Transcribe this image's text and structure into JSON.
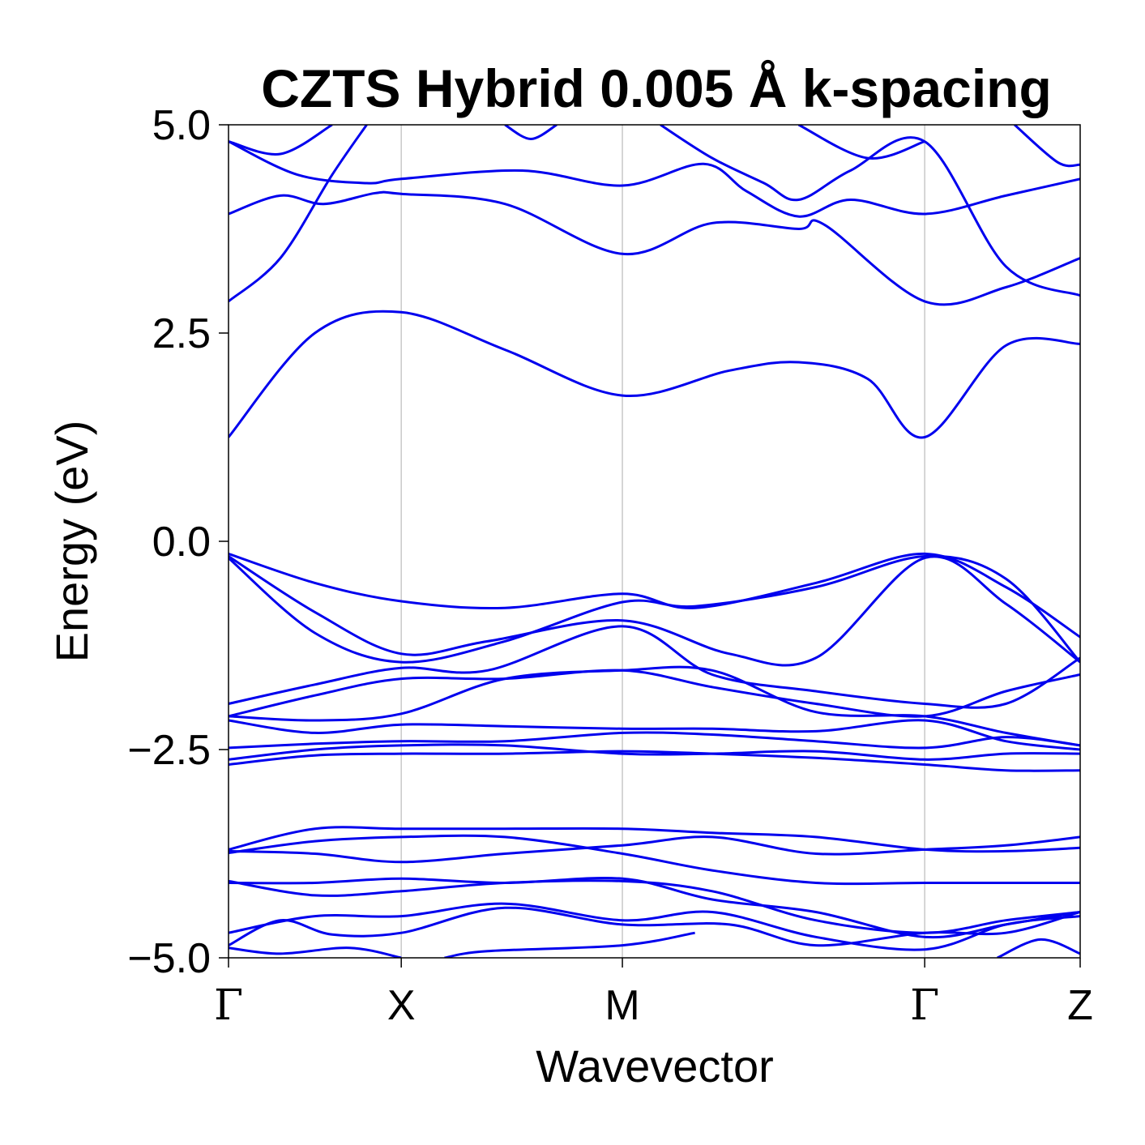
{
  "chart_data": {
    "type": "line",
    "title": "CZTS Hybrid 0.005 Å k-spacing",
    "xlabel": "Wavevector",
    "ylabel": "Energy (eV)",
    "ylim": [
      -5.0,
      5.0
    ],
    "yticks": [
      5.0,
      2.5,
      0.0,
      -2.5,
      -5.0
    ],
    "ytick_labels": [
      "5.0",
      "2.5",
      "0.0",
      "−2.5",
      "−5.0"
    ],
    "kpoint_labels": [
      "Γ",
      "X",
      "M",
      "Γ",
      "Z"
    ],
    "kpoint_positions": [
      0.0,
      1.0,
      2.28,
      4.03,
      4.93
    ],
    "xlim": [
      0.0,
      4.93
    ],
    "grid": "vertical lines at high-symmetry points",
    "line_color": "#0000ee",
    "series": [
      {
        "values": [
          [
            0,
            1.25
          ],
          [
            0.5,
            2.5
          ],
          [
            1.0,
            2.75
          ],
          [
            1.6,
            2.3
          ],
          [
            2.28,
            1.75
          ],
          [
            2.9,
            2.05
          ],
          [
            3.3,
            2.15
          ],
          [
            3.7,
            1.95
          ],
          [
            4.03,
            1.25
          ],
          [
            4.5,
            2.35
          ],
          [
            4.93,
            2.37
          ]
        ]
      },
      {
        "values": [
          [
            0,
            2.88
          ],
          [
            0.3,
            3.4
          ],
          [
            0.6,
            4.4
          ],
          [
            0.8,
            5.0
          ]
        ]
      },
      {
        "values": [
          [
            0,
            3.93
          ],
          [
            0.3,
            4.15
          ],
          [
            0.55,
            4.05
          ],
          [
            0.85,
            4.18
          ],
          [
            1.0,
            4.17
          ],
          [
            1.6,
            4.05
          ],
          [
            2.28,
            3.45
          ],
          [
            2.8,
            3.82
          ],
          [
            3.3,
            3.75
          ],
          [
            3.45,
            3.8
          ],
          [
            4.03,
            2.88
          ],
          [
            4.5,
            3.05
          ],
          [
            4.93,
            3.4
          ]
        ]
      },
      {
        "values": [
          [
            0,
            4.8
          ],
          [
            0.4,
            4.4
          ],
          [
            0.8,
            4.3
          ],
          [
            1.0,
            4.35
          ],
          [
            1.7,
            4.45
          ],
          [
            2.28,
            4.27
          ],
          [
            2.75,
            4.53
          ],
          [
            3.0,
            4.2
          ],
          [
            3.3,
            3.9
          ],
          [
            3.6,
            4.1
          ],
          [
            4.03,
            3.93
          ],
          [
            4.5,
            4.15
          ],
          [
            4.93,
            4.35
          ]
        ]
      },
      {
        "values": [
          [
            0,
            4.8
          ],
          [
            0.3,
            4.65
          ],
          [
            0.6,
            5.0
          ]
        ]
      },
      {
        "values": [
          [
            1.6,
            5.0
          ],
          [
            1.75,
            4.83
          ],
          [
            1.9,
            5.0
          ]
        ]
      },
      {
        "values": [
          [
            2.5,
            5.0
          ],
          [
            2.8,
            4.6
          ],
          [
            3.1,
            4.3
          ],
          [
            3.3,
            4.1
          ],
          [
            3.6,
            4.45
          ],
          [
            4.03,
            4.8
          ],
          [
            4.5,
            3.3
          ],
          [
            4.93,
            2.95
          ]
        ]
      },
      {
        "values": [
          [
            3.3,
            5.0
          ],
          [
            3.7,
            4.6
          ],
          [
            4.03,
            4.8
          ]
        ]
      },
      {
        "values": [
          [
            4.55,
            5.0
          ],
          [
            4.8,
            4.55
          ],
          [
            4.93,
            4.52
          ]
        ]
      },
      {
        "values": [
          [
            0,
            -0.15
          ],
          [
            0.5,
            -0.5
          ],
          [
            1.0,
            -0.72
          ],
          [
            1.6,
            -0.8
          ],
          [
            2.28,
            -0.63
          ],
          [
            2.7,
            -0.8
          ],
          [
            3.4,
            -0.5
          ],
          [
            4.03,
            -0.15
          ],
          [
            4.5,
            -0.55
          ],
          [
            4.93,
            -1.15
          ]
        ]
      },
      {
        "values": [
          [
            0,
            -0.18
          ],
          [
            0.5,
            -0.85
          ],
          [
            1.0,
            -1.35
          ],
          [
            1.5,
            -1.2
          ],
          [
            2.28,
            -0.95
          ],
          [
            2.9,
            -1.35
          ],
          [
            3.4,
            -1.4
          ],
          [
            4.03,
            -0.2
          ],
          [
            4.5,
            -0.75
          ],
          [
            4.93,
            -1.45
          ]
        ]
      },
      {
        "values": [
          [
            0,
            -0.2
          ],
          [
            0.5,
            -1.1
          ],
          [
            1.0,
            -1.45
          ],
          [
            1.6,
            -1.2
          ],
          [
            2.28,
            -0.73
          ],
          [
            2.7,
            -0.78
          ],
          [
            3.4,
            -0.55
          ],
          [
            4.03,
            -0.18
          ],
          [
            4.5,
            -0.45
          ],
          [
            4.93,
            -1.45
          ]
        ]
      },
      {
        "values": [
          [
            0,
            -1.95
          ],
          [
            0.5,
            -1.72
          ],
          [
            1.0,
            -1.52
          ],
          [
            1.5,
            -1.55
          ],
          [
            2.28,
            -1.02
          ],
          [
            2.8,
            -1.6
          ],
          [
            3.4,
            -1.8
          ],
          [
            4.03,
            -1.95
          ],
          [
            4.5,
            -1.95
          ],
          [
            4.93,
            -1.4
          ]
        ]
      },
      {
        "values": [
          [
            0,
            -2.1
          ],
          [
            0.5,
            -1.85
          ],
          [
            1.0,
            -1.65
          ],
          [
            1.6,
            -1.65
          ],
          [
            2.28,
            -1.55
          ],
          [
            2.8,
            -1.75
          ],
          [
            3.4,
            -1.95
          ],
          [
            4.03,
            -2.1
          ],
          [
            4.5,
            -1.8
          ],
          [
            4.93,
            -1.6
          ]
        ]
      },
      {
        "values": [
          [
            0,
            -2.1
          ],
          [
            0.5,
            -2.15
          ],
          [
            1.0,
            -2.07
          ],
          [
            1.6,
            -1.65
          ],
          [
            2.28,
            -1.55
          ],
          [
            2.8,
            -1.55
          ],
          [
            3.4,
            -2.05
          ],
          [
            4.03,
            -2.1
          ],
          [
            4.5,
            -2.3
          ],
          [
            4.93,
            -2.45
          ]
        ]
      },
      {
        "values": [
          [
            0,
            -2.15
          ],
          [
            0.5,
            -2.3
          ],
          [
            1.0,
            -2.2
          ],
          [
            1.6,
            -2.22
          ],
          [
            2.28,
            -2.25
          ],
          [
            2.8,
            -2.25
          ],
          [
            3.4,
            -2.28
          ],
          [
            4.03,
            -2.15
          ],
          [
            4.5,
            -2.4
          ],
          [
            4.93,
            -2.5
          ]
        ]
      },
      {
        "values": [
          [
            0,
            -2.48
          ],
          [
            0.5,
            -2.43
          ],
          [
            1.0,
            -2.4
          ],
          [
            1.6,
            -2.4
          ],
          [
            2.28,
            -2.3
          ],
          [
            2.8,
            -2.32
          ],
          [
            3.4,
            -2.4
          ],
          [
            4.03,
            -2.48
          ],
          [
            4.5,
            -2.35
          ],
          [
            4.93,
            -2.45
          ]
        ]
      },
      {
        "values": [
          [
            0,
            -2.62
          ],
          [
            0.5,
            -2.5
          ],
          [
            1.0,
            -2.45
          ],
          [
            1.6,
            -2.45
          ],
          [
            2.28,
            -2.55
          ],
          [
            2.8,
            -2.55
          ],
          [
            3.4,
            -2.52
          ],
          [
            4.03,
            -2.62
          ],
          [
            4.5,
            -2.55
          ],
          [
            4.93,
            -2.55
          ]
        ]
      },
      {
        "values": [
          [
            0,
            -2.68
          ],
          [
            0.5,
            -2.57
          ],
          [
            1.0,
            -2.55
          ],
          [
            1.6,
            -2.55
          ],
          [
            2.28,
            -2.52
          ],
          [
            2.8,
            -2.55
          ],
          [
            3.4,
            -2.6
          ],
          [
            4.03,
            -2.68
          ],
          [
            4.5,
            -2.75
          ],
          [
            4.93,
            -2.75
          ]
        ]
      },
      {
        "values": [
          [
            0,
            -3.7
          ],
          [
            0.5,
            -3.45
          ],
          [
            1.0,
            -3.45
          ],
          [
            1.6,
            -3.45
          ],
          [
            2.28,
            -3.45
          ],
          [
            2.8,
            -3.5
          ],
          [
            3.4,
            -3.55
          ],
          [
            4.03,
            -3.7
          ],
          [
            4.5,
            -3.72
          ],
          [
            4.93,
            -3.68
          ]
        ]
      },
      {
        "values": [
          [
            0,
            -3.72
          ],
          [
            0.5,
            -3.75
          ],
          [
            1.0,
            -3.85
          ],
          [
            1.6,
            -3.75
          ],
          [
            2.28,
            -3.65
          ],
          [
            2.8,
            -3.55
          ],
          [
            3.4,
            -3.75
          ],
          [
            4.03,
            -3.7
          ],
          [
            4.5,
            -3.65
          ],
          [
            4.93,
            -3.55
          ]
        ]
      },
      {
        "values": [
          [
            0,
            -3.74
          ],
          [
            0.5,
            -3.6
          ],
          [
            1.0,
            -3.55
          ],
          [
            1.6,
            -3.55
          ],
          [
            2.28,
            -3.75
          ],
          [
            2.8,
            -3.95
          ],
          [
            3.4,
            -4.1
          ],
          [
            4.03,
            -4.1
          ],
          [
            4.5,
            -4.1
          ],
          [
            4.93,
            -4.1
          ]
        ]
      },
      {
        "values": [
          [
            0,
            -4.08
          ],
          [
            0.5,
            -4.25
          ],
          [
            1.0,
            -4.2
          ],
          [
            1.6,
            -4.1
          ],
          [
            2.28,
            -4.08
          ],
          [
            2.8,
            -4.2
          ],
          [
            3.4,
            -4.55
          ],
          [
            4.03,
            -4.7
          ],
          [
            4.5,
            -4.55
          ],
          [
            4.93,
            -4.45
          ]
        ]
      },
      {
        "values": [
          [
            0,
            -4.1
          ],
          [
            0.5,
            -4.1
          ],
          [
            1.0,
            -4.05
          ],
          [
            1.6,
            -4.1
          ],
          [
            2.28,
            -4.05
          ],
          [
            2.8,
            -4.3
          ],
          [
            3.4,
            -4.45
          ],
          [
            4.03,
            -4.75
          ],
          [
            4.5,
            -4.6
          ],
          [
            4.93,
            -4.45
          ]
        ]
      },
      {
        "values": [
          [
            0,
            -4.7
          ],
          [
            0.5,
            -4.5
          ],
          [
            1.0,
            -4.5
          ],
          [
            1.6,
            -4.35
          ],
          [
            2.28,
            -4.55
          ],
          [
            2.8,
            -4.45
          ],
          [
            3.4,
            -4.75
          ],
          [
            4.03,
            -4.9
          ],
          [
            4.5,
            -4.6
          ],
          [
            4.93,
            -4.5
          ]
        ]
      },
      {
        "values": [
          [
            0,
            -4.85
          ],
          [
            0.3,
            -4.55
          ],
          [
            0.6,
            -4.72
          ],
          [
            1.0,
            -4.7
          ],
          [
            1.6,
            -4.4
          ],
          [
            2.28,
            -4.6
          ],
          [
            2.9,
            -4.6
          ],
          [
            3.4,
            -4.85
          ],
          [
            4.03,
            -4.7
          ],
          [
            4.5,
            -4.7
          ],
          [
            4.93,
            -4.45
          ]
        ]
      },
      {
        "values": [
          [
            0,
            -4.88
          ],
          [
            0.3,
            -4.95
          ],
          [
            0.7,
            -4.88
          ],
          [
            1.0,
            -5.0
          ]
        ]
      },
      {
        "values": [
          [
            1.25,
            -5.0
          ],
          [
            1.5,
            -4.92
          ],
          [
            2.28,
            -4.85
          ],
          [
            2.7,
            -4.7
          ]
        ]
      },
      {
        "values": [
          [
            4.45,
            -5.0
          ],
          [
            4.7,
            -4.78
          ],
          [
            4.93,
            -4.95
          ]
        ]
      }
    ]
  }
}
